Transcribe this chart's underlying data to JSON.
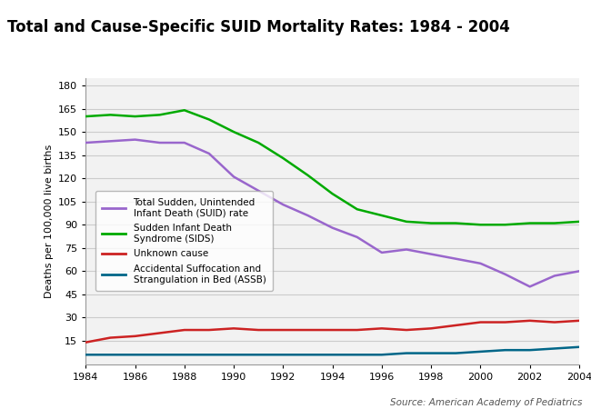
{
  "title": "Total and Cause-Specific SUID Mortality Rates: 1984 - 2004",
  "title_bg_color": "#a8d8e8",
  "ylabel": "Deaths per 100,000 live births",
  "source": "Source: American Academy of Pediatrics",
  "years": [
    1984,
    1985,
    1986,
    1987,
    1988,
    1989,
    1990,
    1991,
    1992,
    1993,
    1994,
    1995,
    1996,
    1997,
    1998,
    1999,
    2000,
    2001,
    2002,
    2003,
    2004
  ],
  "suid": [
    143,
    144,
    145,
    143,
    143,
    136,
    121,
    112,
    103,
    96,
    88,
    82,
    72,
    74,
    71,
    68,
    65,
    58,
    50,
    57,
    60
  ],
  "sids": [
    160,
    161,
    160,
    161,
    164,
    158,
    150,
    143,
    133,
    122,
    110,
    100,
    96,
    92,
    91,
    91,
    90,
    90,
    91,
    91,
    92
  ],
  "unknown": [
    14,
    17,
    18,
    20,
    22,
    22,
    23,
    22,
    22,
    22,
    22,
    22,
    23,
    22,
    23,
    25,
    27,
    27,
    28,
    27,
    28
  ],
  "assb": [
    6,
    6,
    6,
    6,
    6,
    6,
    6,
    6,
    6,
    6,
    6,
    6,
    6,
    7,
    7,
    7,
    8,
    9,
    9,
    10,
    11
  ],
  "suid_color": "#9966cc",
  "sids_color": "#00aa00",
  "unknown_color": "#cc2222",
  "assb_color": "#006688",
  "ylim": [
    0,
    185
  ],
  "yticks": [
    15,
    30,
    45,
    60,
    75,
    90,
    105,
    120,
    135,
    150,
    165,
    180
  ],
  "xticks": [
    1984,
    1986,
    1988,
    1990,
    1992,
    1994,
    1996,
    1998,
    2000,
    2002,
    2004
  ],
  "grid_color": "#cccccc",
  "plot_bg_color": "#f2f2f2",
  "legend_labels": [
    "Total Sudden, Unintended\nInfant Death (SUID) rate",
    "Sudden Infant Death\nSyndrome (SIDS)",
    "Unknown cause",
    "Accidental Suffocation and\nStrangulation in Bed (ASSB)"
  ]
}
